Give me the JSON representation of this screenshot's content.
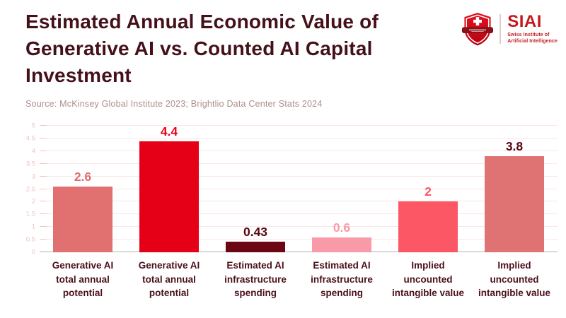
{
  "header": {
    "title_lines": [
      "Estimated Annual Economic Value of",
      "Generative AI vs. Counted AI Capital",
      "Investment"
    ],
    "source": "Source: McKinsey Global Institute 2023; Brightlio Data Center Stats 2024"
  },
  "logo": {
    "acronym": "SIAI",
    "subtitle_lines": [
      "Swiss Institute of",
      "Artificial Intelligence"
    ],
    "brand_color": "#C51A1F"
  },
  "chart_data": {
    "type": "bar",
    "title": "Estimated Annual Economic Value of Generative AI vs. Counted AI Capital Investment",
    "xlabel": "",
    "ylabel": "",
    "ylim": [
      0,
      5
    ],
    "ytick_step": 0.5,
    "grid": true,
    "legend": false,
    "y_ticks": [
      "0",
      "0.5",
      "1",
      "1.5",
      "2",
      "2.5",
      "3",
      "3.5",
      "4",
      "4.5",
      "5"
    ],
    "categories": [
      "Generative AI total annual potential",
      "Generative AI total annual potential",
      "Estimated AI infrastructure spending",
      "Estimated AI infrastructure spending",
      "Implied uncounted intangible value",
      "Implied uncounted intangible value"
    ],
    "values": [
      2.6,
      4.4,
      0.43,
      0.6,
      2,
      3.8
    ],
    "bars": [
      {
        "category_lines": [
          "Generative AI",
          "total annual",
          "potential"
        ],
        "value": 2.6,
        "value_label": "2.6",
        "bar_color": "#E17070",
        "value_label_color": "#DE6F6F"
      },
      {
        "category_lines": [
          "Generative AI",
          "total annual",
          "potential"
        ],
        "value": 4.4,
        "value_label": "4.4",
        "bar_color": "#E60017",
        "value_label_color": "#E60017"
      },
      {
        "category_lines": [
          "Estimated AI",
          "infrastructure",
          "spending"
        ],
        "value": 0.43,
        "value_label": "0.43",
        "bar_color": "#6B0713",
        "value_label_color": "#570410"
      },
      {
        "category_lines": [
          "Estimated AI",
          "infrastructure",
          "spending"
        ],
        "value": 0.6,
        "value_label": "0.6",
        "bar_color": "#F99AA8",
        "value_label_color": "#F99AA8"
      },
      {
        "category_lines": [
          "Implied",
          "uncounted",
          "intangible value"
        ],
        "value": 2,
        "value_label": "2",
        "bar_color": "#FB5765",
        "value_label_color": "#FB5765"
      },
      {
        "category_lines": [
          "Implied",
          "uncounted",
          "intangible value"
        ],
        "value": 3.8,
        "value_label": "3.8",
        "bar_color": "#DF7373",
        "value_label_color": "#570410"
      }
    ],
    "colors": {
      "grid": "#FBE6E6",
      "axis": "#D9D9D9",
      "ytick_label": "#F4C2C2",
      "category_label": "#4B101A",
      "title": "#45101A",
      "source": "#AE8E8E"
    }
  }
}
